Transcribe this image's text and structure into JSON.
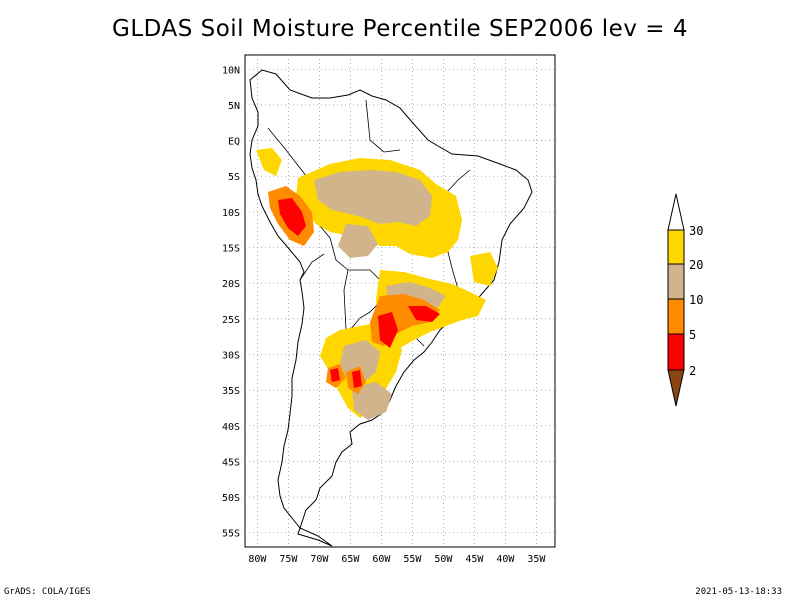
{
  "title": "GLDAS Soil Moisture Percentile SEP2006 lev = 4",
  "map": {
    "lat_labels": [
      "10N",
      "5N",
      "EQ",
      "5S",
      "10S",
      "15S",
      "20S",
      "25S",
      "30S",
      "35S",
      "40S",
      "45S",
      "50S",
      "55S"
    ],
    "lon_labels": [
      "80W",
      "75W",
      "70W",
      "65W",
      "60W",
      "55W",
      "50W",
      "45W",
      "40W",
      "35W"
    ],
    "lat_range": [
      10,
      -55
    ],
    "lon_range": [
      -80,
      -32
    ]
  },
  "legend": {
    "levels": [
      "30",
      "20",
      "10",
      "5",
      "2"
    ],
    "colors": {
      "above_30": "#ffffff",
      "20_30": "#ffd700",
      "10_20": "#d2b48c",
      "5_10": "#ff8c00",
      "2_5": "#ff0000",
      "below_2": "#8b4513"
    }
  },
  "footer": {
    "left": "GrADS: COLA/IGES",
    "right": "2021-05-13-18:33"
  }
}
